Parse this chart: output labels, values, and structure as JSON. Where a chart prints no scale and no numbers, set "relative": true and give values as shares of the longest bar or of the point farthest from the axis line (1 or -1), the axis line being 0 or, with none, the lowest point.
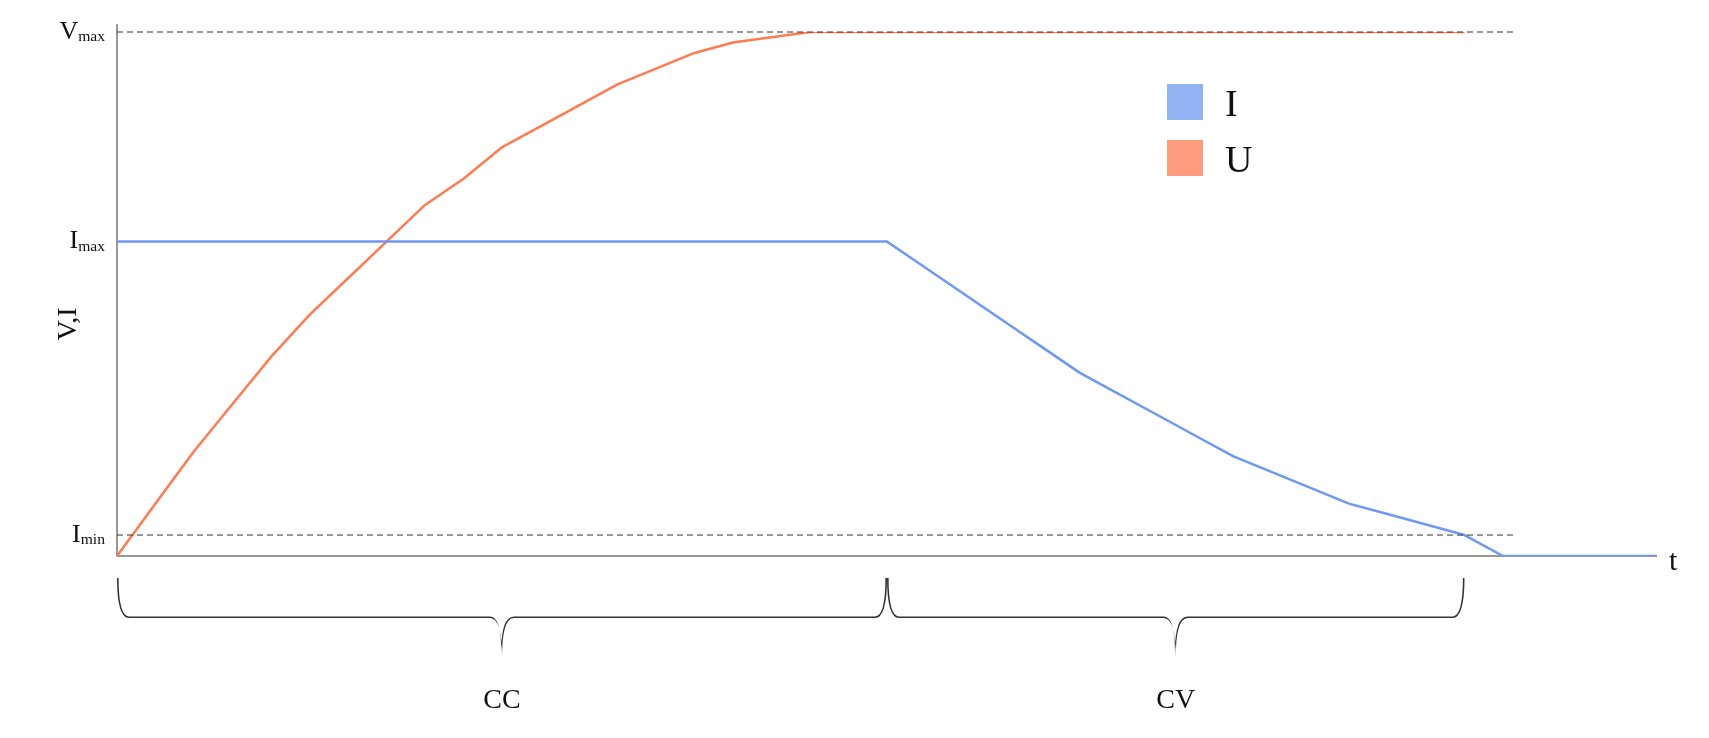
{
  "chart_data": {
    "type": "line",
    "relative": true,
    "ylabel": "V,I",
    "xlabel": "t",
    "legend": "top right",
    "marker": "none",
    "line_style": "solid",
    "categories": [
      null,
      null,
      null,
      null,
      null,
      null,
      null,
      null,
      null,
      null,
      null,
      null,
      null,
      null,
      null,
      null,
      null,
      null,
      null,
      null,
      null,
      null,
      null,
      null,
      null,
      null,
      null,
      null,
      null,
      null,
      null,
      null,
      null,
      null,
      null,
      null,
      null,
      null,
      null,
      null,
      null
    ],
    "series": [
      {
        "name": "I",
        "color": "#6f99f0",
        "values": [
          0.6,
          0.6,
          0.6,
          0.6,
          0.6,
          0.6,
          0.6,
          0.6,
          0.6,
          0.6,
          0.6,
          0.6,
          0.6,
          0.6,
          0.6,
          0.6,
          0.6,
          0.6,
          0.6,
          0.6,
          0.6,
          0.55,
          0.5,
          0.45,
          0.4,
          0.35,
          0.31,
          0.27,
          0.23,
          0.19,
          0.16,
          0.13,
          0.1,
          0.08,
          0.06,
          0.04,
          0,
          0,
          0,
          0,
          0
        ]
      },
      {
        "name": "U",
        "color": "#ff7b52",
        "values": [
          0,
          0.1,
          0.2,
          0.29,
          0.38,
          0.46,
          0.53,
          0.6,
          0.67,
          0.72,
          0.78,
          0.82,
          0.86,
          0.9,
          0.93,
          0.96,
          0.98,
          0.99,
          1,
          1,
          1,
          1,
          1,
          1,
          1,
          1,
          1,
          1,
          1,
          1,
          1,
          1,
          1,
          1,
          1,
          1,
          null,
          null,
          null,
          null,
          null
        ]
      }
    ],
    "ref_lines": [
      {
        "axis": "y",
        "value": 1,
        "label": "V$_{max}$",
        "line_style": "dashed",
        "color": "#333333"
      },
      {
        "axis": "y",
        "value": 0.04,
        "label": "I$_{min}$",
        "line_style": "dashed",
        "color": "#333333"
      }
    ],
    "annotations": [
      "I$_{max}$",
      "CC",
      "CV"
    ]
  }
}
